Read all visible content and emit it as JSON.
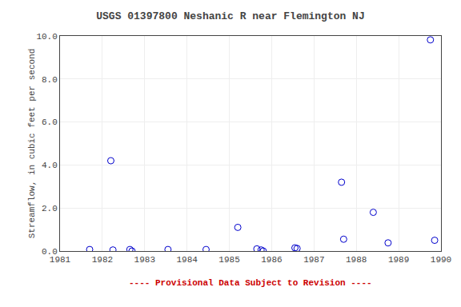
{
  "chart_data": {
    "type": "scatter",
    "title": "USGS 01397800 Neshanic R near Flemington NJ",
    "ylabel": "Streamflow, in cubic feet per second",
    "x": [
      1981.7,
      1982.2,
      1982.25,
      1982.65,
      1982.7,
      1983.55,
      1984.45,
      1985.2,
      1985.65,
      1985.75,
      1985.8,
      1986.55,
      1986.6,
      1987.65,
      1987.7,
      1988.4,
      1988.75,
      1989.75,
      1989.85
    ],
    "values": [
      0.07,
      4.2,
      0.05,
      0.07,
      0.0,
      0.07,
      0.07,
      1.1,
      0.1,
      0.05,
      0.0,
      0.15,
      0.12,
      3.2,
      0.55,
      1.8,
      0.38,
      9.82,
      0.5
    ],
    "color": "#0000cc",
    "marker": "circle-open",
    "xlim": [
      1981,
      1990
    ],
    "ylim": [
      0.0,
      10.0
    ],
    "xticks": [
      1981,
      1982,
      1983,
      1984,
      1985,
      1986,
      1987,
      1988,
      1989,
      1990
    ],
    "yticks": [
      {
        "value": 0.0,
        "label": "0.0"
      },
      {
        "value": 2.0,
        "label": "2.0"
      },
      {
        "value": 4.0,
        "label": "4.0"
      },
      {
        "value": 6.0,
        "label": "6.0"
      },
      {
        "value": 8.0,
        "label": "8.0"
      },
      {
        "value": 10.0,
        "label": "10.0"
      }
    ],
    "grid": true,
    "annotations": [
      {
        "text": "---- Provisional Data Subject to Revision ----",
        "color": "#cc0000"
      }
    ]
  }
}
